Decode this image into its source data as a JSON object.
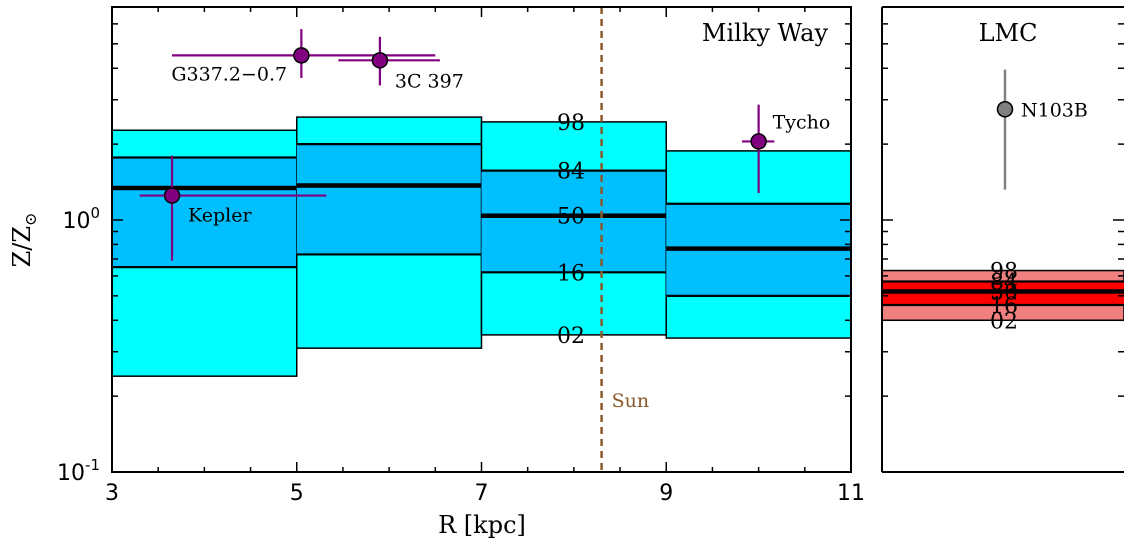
{
  "chart_data": [
    {
      "panel": "Milky Way",
      "type": "area",
      "title": "Milky Way",
      "xlabel": "R [kpc]",
      "ylabel": "Z/Z",
      "ylabel_sub": "⊙",
      "xlim": [
        3,
        11
      ],
      "ylim": [
        0.1,
        7.0
      ],
      "yscale": "log",
      "x_ticks": [
        "3",
        "5",
        "7",
        "9",
        "11"
      ],
      "y_ticks": [
        {
          "value": 1.0,
          "base": "10",
          "exp": "0"
        },
        {
          "value": 0.1,
          "base": "10",
          "exp": "-1"
        }
      ],
      "band_colors": {
        "outer": "#00ffff",
        "inner": "#00bfff",
        "edge": "#000000"
      },
      "bins": [
        {
          "x0": 3,
          "x1": 5,
          "p02": 0.24,
          "p16": 0.65,
          "p50": 1.34,
          "p84": 1.77,
          "p98": 2.27
        },
        {
          "x0": 5,
          "x1": 7,
          "p02": 0.31,
          "p16": 0.73,
          "p50": 1.37,
          "p84": 2.0,
          "p98": 2.56
        },
        {
          "x0": 7,
          "x1": 9,
          "p02": 0.35,
          "p16": 0.62,
          "p50": 1.04,
          "p84": 1.57,
          "p98": 2.45
        },
        {
          "x0": 9,
          "x1": 11,
          "p02": 0.34,
          "p16": 0.5,
          "p50": 0.77,
          "p84": 1.16,
          "p98": 1.88
        }
      ],
      "percentile_labels": [
        "98",
        "84",
        "50",
        "16",
        "02"
      ],
      "sun": {
        "label": "Sun",
        "x": 8.3,
        "color": "#8b5a2b"
      },
      "points": [
        {
          "name": "G337.2−0.7",
          "x": 5.05,
          "y": 4.5,
          "xerr": [
            3.65,
            6.5
          ],
          "yerr": [
            3.66,
            5.72
          ],
          "color": "#800080"
        },
        {
          "name": "3C 397",
          "x": 5.9,
          "y": 4.3,
          "xerr": [
            5.45,
            6.55
          ],
          "yerr": [
            3.42,
            5.33
          ],
          "color": "#800080"
        },
        {
          "name": "Kepler",
          "x": 3.65,
          "y": 1.25,
          "xerr": [
            3.3,
            5.32
          ],
          "yerr": [
            0.69,
            1.8
          ],
          "color": "#800080"
        },
        {
          "name": "Tycho",
          "x": 10.0,
          "y": 2.05,
          "xerr": [
            9.82,
            10.17
          ],
          "yerr": [
            1.28,
            2.87
          ],
          "color": "#800080"
        }
      ]
    },
    {
      "panel": "LMC",
      "type": "area",
      "title": "LMC",
      "ylim": [
        0.1,
        7.0
      ],
      "yscale": "log",
      "band_colors": {
        "outer": "#f08080",
        "inner": "#ff0000",
        "edge": "#000000"
      },
      "band": {
        "p02": 0.4,
        "p16": 0.46,
        "p50": 0.52,
        "p84": 0.57,
        "p98": 0.63
      },
      "percentile_labels": [
        "98",
        "84",
        "50",
        "16",
        "02"
      ],
      "points": [
        {
          "name": "N103B",
          "y": 2.75,
          "yerr": [
            1.32,
            3.95
          ],
          "color": "#808080"
        }
      ]
    }
  ]
}
